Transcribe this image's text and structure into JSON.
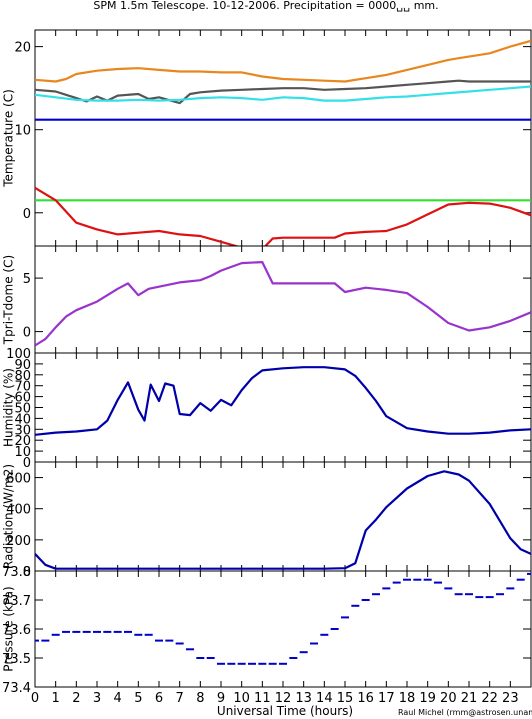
{
  "title": "SPM 1.5m Telescope. 10-12-2006. Precipitation = 0000␣␣ mm.",
  "credit": "Raul Michel (rmm@astrosen.unam.mx)",
  "xlabel": "Universal Time (hours)",
  "xticks": [
    "0",
    "1",
    "2",
    "3",
    "4",
    "5",
    "6",
    "7",
    "8",
    "9",
    "10",
    "11",
    "12",
    "13",
    "14",
    "15",
    "16",
    "17",
    "18",
    "19",
    "20",
    "21",
    "22",
    "23"
  ],
  "chart_data": [
    {
      "type": "line",
      "ylabel": "Temperature (C)",
      "ylim": [
        -4,
        22
      ],
      "yticks": [
        "0",
        "10",
        "20"
      ],
      "series": [
        {
          "color": "#e8871e",
          "x": [
            0,
            1,
            1.5,
            2,
            3,
            4,
            5,
            6,
            7,
            8,
            9,
            10,
            11,
            12,
            13,
            14,
            15,
            16,
            17,
            18,
            19,
            20,
            20.5,
            21,
            22,
            23,
            24
          ],
          "y": [
            16,
            15.8,
            16.1,
            16.7,
            17.1,
            17.3,
            17.4,
            17.2,
            17,
            17,
            16.9,
            16.9,
            16.4,
            16.1,
            16.0,
            15.9,
            15.8,
            16.2,
            16.6,
            17.2,
            17.8,
            18.4,
            18.6,
            18.8,
            19.2,
            20.0,
            20.7
          ]
        },
        {
          "color": "#555555",
          "x": [
            0,
            1,
            1.5,
            2,
            2.5,
            3,
            3.5,
            4,
            5,
            5.5,
            6,
            7,
            7.5,
            8,
            9,
            10,
            11,
            12,
            13,
            14,
            15,
            16,
            17,
            18,
            19,
            20,
            20.5,
            21,
            22,
            23,
            24
          ],
          "y": [
            14.8,
            14.6,
            14.2,
            13.8,
            13.4,
            14.0,
            13.5,
            14.1,
            14.3,
            13.7,
            13.9,
            13.2,
            14.3,
            14.5,
            14.7,
            14.8,
            14.9,
            15.0,
            15.0,
            14.8,
            14.9,
            15.0,
            15.2,
            15.4,
            15.6,
            15.8,
            15.9,
            15.8,
            15.8,
            15.8,
            15.8
          ]
        },
        {
          "color": "#33e0e8",
          "x": [
            0,
            1,
            2,
            3,
            4,
            5,
            6,
            7,
            8,
            9,
            10,
            11,
            12,
            13,
            14,
            15,
            16,
            17,
            18,
            19,
            20,
            21,
            22,
            23,
            24
          ],
          "y": [
            14.2,
            13.9,
            13.6,
            13.5,
            13.5,
            13.6,
            13.5,
            13.6,
            13.8,
            13.9,
            13.8,
            13.6,
            13.9,
            13.8,
            13.5,
            13.5,
            13.7,
            13.9,
            14.0,
            14.2,
            14.4,
            14.6,
            14.8,
            15.0,
            15.2
          ]
        },
        {
          "color": "#0000d0",
          "x": [
            0,
            24
          ],
          "y": [
            11.2,
            11.2
          ]
        },
        {
          "color": "#33dd33",
          "x": [
            0,
            24
          ],
          "y": [
            1.5,
            1.5
          ]
        },
        {
          "color": "#dd1111",
          "x": [
            0,
            1,
            2,
            3,
            4,
            5,
            6,
            7,
            8,
            9,
            10,
            11,
            11.5,
            12,
            13,
            14,
            14.5,
            15,
            16,
            17,
            18,
            19,
            20,
            21,
            22,
            23,
            24
          ],
          "y": [
            3.0,
            1.5,
            -1.2,
            -2.0,
            -2.6,
            -2.4,
            -2.2,
            -2.6,
            -2.8,
            -3.5,
            -4.2,
            -4.4,
            -3.1,
            -3.0,
            -3.0,
            -3.0,
            -3.0,
            -2.5,
            -2.3,
            -2.2,
            -1.4,
            -0.2,
            1.0,
            1.2,
            1.1,
            0.6,
            -0.3
          ]
        }
      ]
    },
    {
      "type": "line",
      "ylabel": "Tpri-Tdome (C)",
      "ylim": [
        -2,
        8
      ],
      "yticks": [
        "0",
        "5"
      ],
      "series": [
        {
          "color": "#9933cc",
          "x": [
            0,
            0.5,
            1,
            1.5,
            2,
            3,
            4,
            4.5,
            5,
            5.5,
            6,
            7,
            8,
            8.5,
            9,
            10,
            11,
            11.5,
            12,
            13,
            14,
            14.5,
            15,
            16,
            17,
            18,
            19,
            20,
            21,
            22,
            23,
            24
          ],
          "y": [
            -1.3,
            -0.7,
            0.4,
            1.4,
            2.0,
            2.8,
            4.0,
            4.5,
            3.4,
            4.0,
            4.2,
            4.6,
            4.8,
            5.2,
            5.7,
            6.4,
            6.5,
            4.5,
            4.5,
            4.5,
            4.5,
            4.5,
            3.7,
            4.1,
            3.9,
            3.6,
            2.3,
            0.8,
            0.1,
            0.4,
            1.0,
            1.8
          ]
        }
      ]
    },
    {
      "type": "line",
      "ylabel": "Humidity (%)",
      "ylim": [
        0,
        100
      ],
      "yticks": [
        "0",
        "10",
        "20",
        "30",
        "40",
        "50",
        "60",
        "70",
        "80",
        "90",
        "100"
      ],
      "series": [
        {
          "color": "#0000aa",
          "x": [
            0,
            1,
            2,
            3,
            3.5,
            4,
            4.5,
            5,
            5.3,
            5.6,
            6,
            6.3,
            6.7,
            7,
            7.5,
            8,
            8.5,
            9,
            9.5,
            10,
            10.5,
            11,
            12,
            13,
            14,
            15,
            15.5,
            16,
            16.5,
            17,
            18,
            19,
            20,
            21,
            22,
            23,
            24
          ],
          "y": [
            25,
            27,
            28,
            30,
            38,
            57,
            73,
            48,
            38,
            71,
            56,
            72,
            70,
            44,
            43,
            54,
            47,
            57,
            52,
            66,
            77,
            84,
            86,
            87,
            87,
            85,
            79,
            68,
            56,
            42,
            31,
            28,
            26,
            26,
            27,
            29,
            30
          ]
        }
      ]
    },
    {
      "type": "line",
      "ylabel": "Radiation (W/m2)",
      "ylim": [
        0,
        700
      ],
      "yticks": [
        "0",
        "200",
        "400",
        "600"
      ],
      "series": [
        {
          "color": "#0000aa",
          "x": [
            0,
            0.5,
            1,
            2,
            4,
            6,
            8,
            10,
            12,
            14,
            15,
            15.5,
            16,
            16.5,
            17,
            18,
            19,
            19.8,
            20.5,
            21,
            22,
            23,
            23.5,
            24
          ],
          "y": [
            110,
            40,
            15,
            15,
            15,
            15,
            15,
            15,
            15,
            15,
            18,
            50,
            260,
            330,
            410,
            530,
            610,
            640,
            620,
            580,
            430,
            210,
            140,
            110
          ]
        }
      ]
    },
    {
      "type": "scatter",
      "ylabel": "Pressure (kPa)",
      "ylim": [
        73.4,
        73.8
      ],
      "yticks": [
        "73.4",
        "73.5",
        "73.6",
        "73.7",
        "73.8"
      ],
      "series": [
        {
          "color": "#0000cc",
          "x": [
            0,
            0.5,
            1,
            1.5,
            2,
            2.5,
            3,
            3.5,
            4,
            4.5,
            5,
            5.5,
            6,
            6.5,
            7,
            7.5,
            8,
            8.5,
            9,
            9.5,
            10,
            10.5,
            11,
            11.5,
            12,
            12.5,
            13,
            13.5,
            14,
            14.5,
            15,
            15.5,
            16,
            16.5,
            17,
            17.5,
            18,
            18.5,
            19,
            19.5,
            20,
            20.5,
            21,
            21.5,
            22,
            22.5,
            23,
            23.5,
            24
          ],
          "y": [
            73.56,
            73.56,
            73.58,
            73.59,
            73.59,
            73.59,
            73.59,
            73.59,
            73.59,
            73.59,
            73.58,
            73.58,
            73.56,
            73.56,
            73.55,
            73.53,
            73.5,
            73.5,
            73.48,
            73.48,
            73.48,
            73.48,
            73.48,
            73.48,
            73.48,
            73.5,
            73.52,
            73.55,
            73.58,
            73.6,
            73.64,
            73.68,
            73.7,
            73.72,
            73.74,
            73.76,
            73.77,
            73.77,
            73.77,
            73.76,
            73.74,
            73.72,
            73.72,
            73.71,
            73.71,
            73.72,
            73.74,
            73.77,
            73.79
          ]
        }
      ]
    }
  ]
}
